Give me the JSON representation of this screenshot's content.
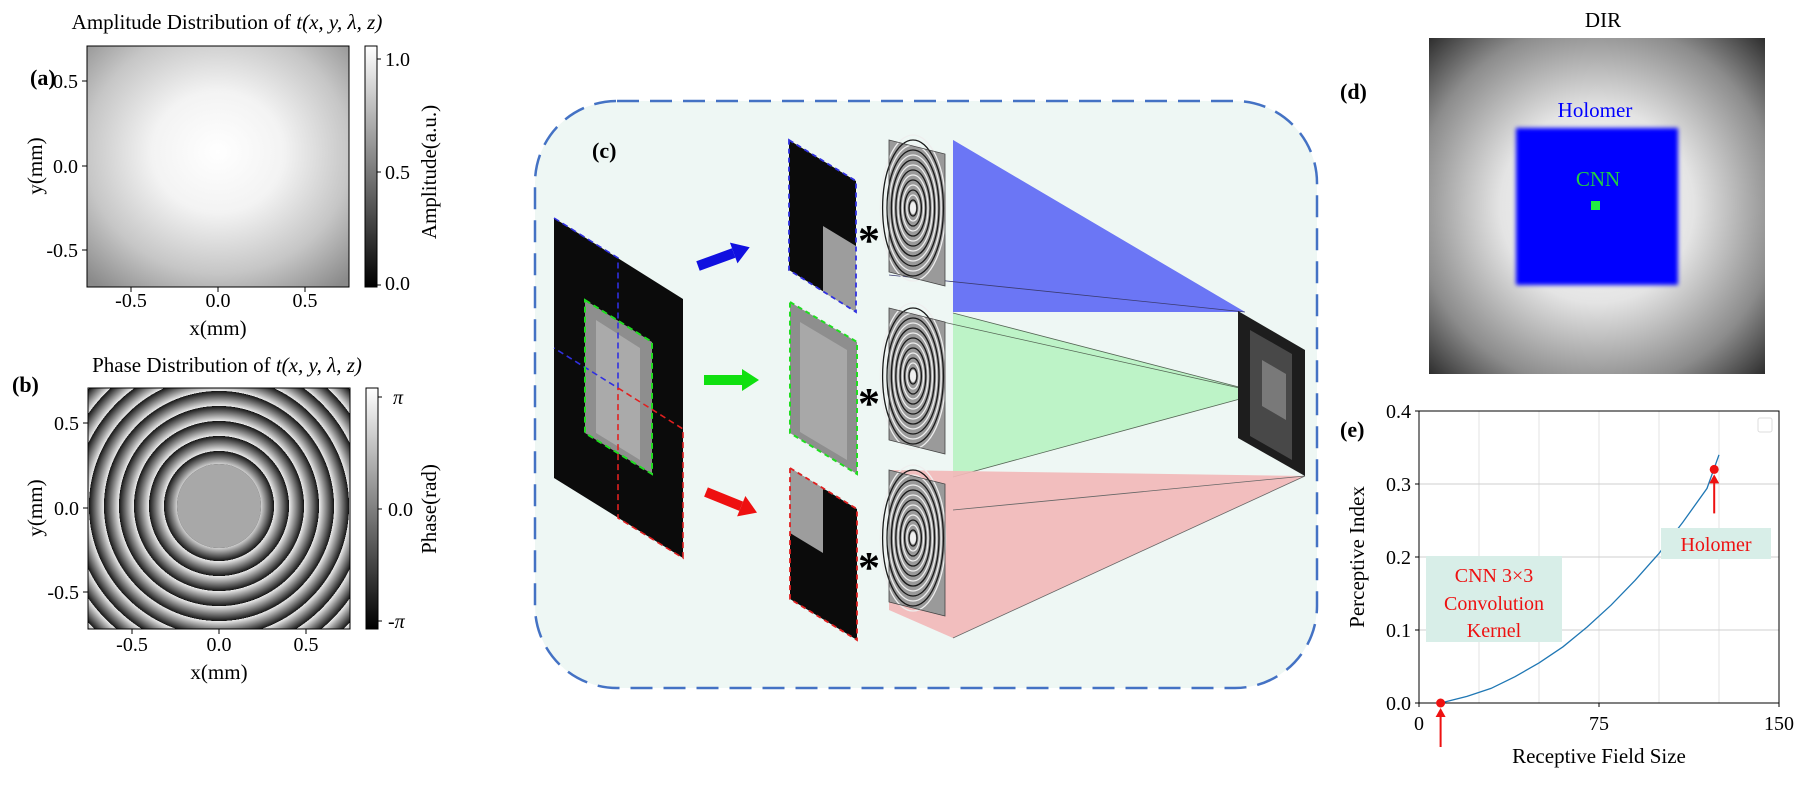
{
  "panel_a": {
    "label": "(a)",
    "title_prefix": "Amplitude Distribution of ",
    "title_math": "t(x, y, λ, z)",
    "xlabel": "x(mm)",
    "ylabel": "y(mm)",
    "xticks": [
      "-0.5",
      "0.0",
      "0.5"
    ],
    "yticks": [
      "0.5",
      "0.0",
      "-0.5"
    ],
    "colorbar_ticks": [
      "1.0",
      "0.5",
      "0.0"
    ],
    "colorbar_label": "Amplitude(a.u.)"
  },
  "panel_b": {
    "label": "(b)",
    "title_prefix": "Phase Distribution of ",
    "title_math": "t(x, y, λ, z)",
    "xlabel": "x(mm)",
    "ylabel": "y(mm)",
    "xticks": [
      "-0.5",
      "0.0",
      "0.5"
    ],
    "yticks": [
      "0.5",
      "0.0",
      "-0.5"
    ],
    "colorbar_ticks": [
      "π",
      "0.0",
      "-π"
    ],
    "colorbar_label": "Phase(rad)"
  },
  "panel_c": {
    "label": "(c)",
    "operator": "*",
    "frame_color": "#4472c4",
    "background_color": "#eef7f4",
    "branch_colors": [
      "#1010e0",
      "#10e010",
      "#ee1010"
    ],
    "fan_colors": [
      "#6a74f4",
      "#b9f2c2",
      "#f2b8b8"
    ]
  },
  "panel_d": {
    "label": "(d)",
    "title": "DIR",
    "holomer_label": "Holomer",
    "cnn_label": "CNN",
    "holomer_color": "#0000ff",
    "cnn_color": "#22ee44"
  },
  "panel_e": {
    "label": "(e)",
    "chart_data": {
      "type": "line",
      "xlabel": "Receptive Field Size",
      "ylabel": "Perceptive Index",
      "xlim": [
        0,
        150
      ],
      "ylim": [
        0,
        0.4
      ],
      "xticks": [
        0,
        75,
        150
      ],
      "yticks": [
        0.0,
        0.1,
        0.2,
        0.3,
        0.4
      ],
      "xtick_labels": [
        "0",
        "75",
        "150"
      ],
      "ytick_labels": [
        "0.0",
        "0.1",
        "0.2",
        "0.3",
        "0.4"
      ],
      "grid": true,
      "series": [
        {
          "x": [
            9,
            20,
            30,
            40,
            50,
            60,
            70,
            80,
            90,
            100,
            110,
            120,
            125
          ],
          "y": [
            0.0,
            0.009,
            0.02,
            0.036,
            0.055,
            0.077,
            0.104,
            0.134,
            0.168,
            0.205,
            0.248,
            0.294,
            0.34
          ],
          "color": "#1f77b4"
        }
      ],
      "points": [
        {
          "x": 9,
          "y": 0.0
        },
        {
          "x": 123,
          "y": 0.32
        }
      ],
      "point_color": "#ee1111",
      "annotations": [
        {
          "lines": [
            "CNN 3×3",
            "Convolution",
            "Kernel"
          ]
        },
        {
          "lines": [
            "Holomer"
          ]
        }
      ],
      "annotation_text_color": "#ee1111",
      "annotation_box_color": "#d8eee8"
    }
  }
}
